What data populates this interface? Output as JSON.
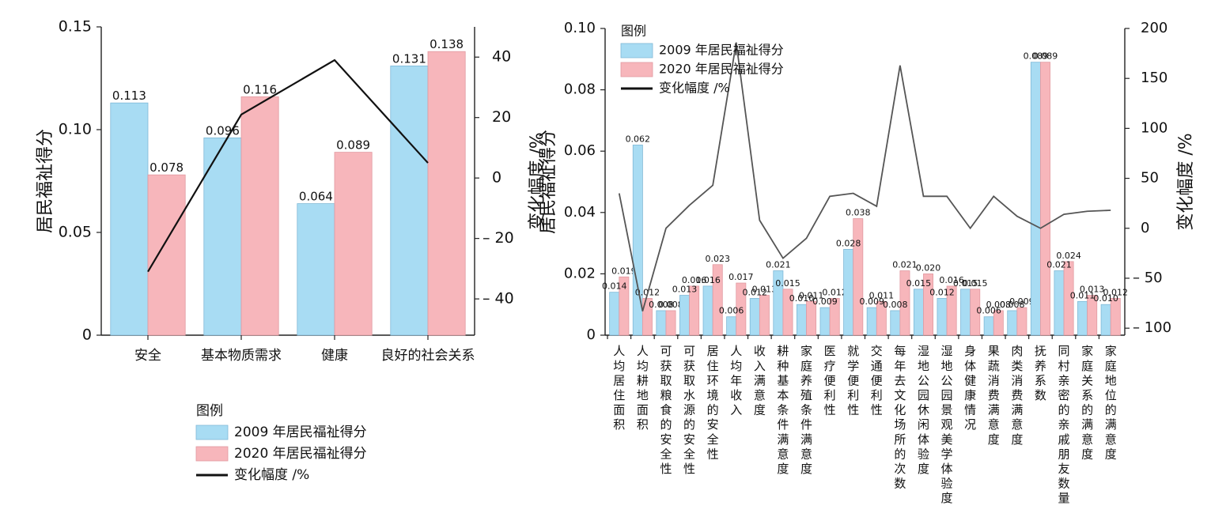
{
  "colors": {
    "s2009": "#a8dcf3",
    "s2020": "#f7b6bb",
    "s2009_edge": "#7fb8d6",
    "s2020_edge": "#e19aa1",
    "line_left": "#111111",
    "line_right": "#555555"
  },
  "chart_data": [
    {
      "type": "bar",
      "categories": [
        "安全",
        "基本物质需求",
        "健康",
        "良好的社会关系"
      ],
      "series": [
        {
          "name": "2009 年居民福祉得分",
          "values": [
            0.113,
            0.096,
            0.064,
            0.131
          ]
        },
        {
          "name": "2020 年居民福祉得分",
          "values": [
            0.078,
            0.116,
            0.089,
            0.138
          ]
        },
        {
          "name": "变化幅度 /%",
          "type": "line",
          "axis": "right",
          "values": [
            -31,
            21,
            39,
            5
          ]
        }
      ],
      "value_labels": [
        [
          "0.113",
          "0.096",
          "0.064",
          "0.131"
        ],
        [
          "0.078",
          "0.116",
          "0.089",
          "0.138"
        ]
      ],
      "ylabel": "居民福祉得分",
      "y2label": "变化幅度 /%",
      "ylim": [
        0,
        0.15
      ],
      "yticks": [
        "0",
        "0.05",
        "0.10",
        "0.15"
      ],
      "y2lim": [
        -52,
        50
      ],
      "y2ticks": [
        {
          "v": 40,
          "label": "40"
        },
        {
          "v": 20,
          "label": "20"
        },
        {
          "v": 0,
          "label": "0"
        },
        {
          "v": -20,
          "label": "– 20"
        },
        {
          "v": -40,
          "label": "– 40"
        }
      ],
      "legend": {
        "title": "图例",
        "items": [
          "2009 年居民福祉得分",
          "2020 年居民福祉得分",
          "变化幅度 /%"
        ],
        "placement": "bottom"
      }
    },
    {
      "type": "bar",
      "categories": [
        "人均居住面积",
        "人均耕地面积",
        "可获取粮食的安全性",
        "可获取水源的安全性",
        "居住环境的安全性",
        "人均年收入",
        "收入满意度",
        "耕种基本条件满意度",
        "家庭养殖条件满意度",
        "医疗便利性",
        "就学便利性",
        "交通便利性",
        "每年去文化场所的次数",
        "湿地公园休闲体验度",
        "湿地公园景观美学体验度",
        "身体健康情况",
        "果蔬消费满意度",
        "肉类消费满意度",
        "抚养系数",
        "同村亲密的亲戚朋友数量",
        "家庭关系的满意度",
        "家庭地位的满意度"
      ],
      "series": [
        {
          "name": "2009 年居民福祉得分",
          "values": [
            0.014,
            0.062,
            0.008,
            0.013,
            0.016,
            0.006,
            0.012,
            0.021,
            0.01,
            0.009,
            0.028,
            0.009,
            0.008,
            0.015,
            0.012,
            0.015,
            0.006,
            0.008,
            0.089,
            0.021,
            0.011,
            0.01
          ]
        },
        {
          "name": "2020 年居民福祉得分",
          "values": [
            0.019,
            0.012,
            0.008,
            0.016,
            0.023,
            0.017,
            0.013,
            0.015,
            0.011,
            0.012,
            0.038,
            0.011,
            0.021,
            0.02,
            0.016,
            0.015,
            0.008,
            0.009,
            0.089,
            0.024,
            0.013,
            0.012
          ]
        },
        {
          "name": "变化幅度 /%",
          "type": "line",
          "axis": "right",
          "values": [
            35,
            -83,
            0,
            23,
            43,
            186,
            8,
            -30,
            -10,
            32,
            35,
            22,
            163,
            32,
            32,
            0,
            32,
            12,
            0,
            14,
            17,
            18
          ]
        }
      ],
      "value_labels": [
        [
          "0.014",
          "0.062",
          "0.008",
          "0.013",
          "0.016",
          "0.006",
          "0.012",
          "0.021",
          "0.010",
          "0.009",
          "0.028",
          "0.009",
          "0.008",
          "0.015",
          "0.012",
          "0.015",
          "0.006",
          "0.008",
          "0.089",
          "0.021",
          "0.011",
          "0.010"
        ],
        [
          "0.019",
          "0.012",
          "0.008",
          "0.016",
          "0.023",
          "0.017",
          "0.013",
          "0.015",
          "0.011",
          "0.012",
          "0.038",
          "0.011",
          "0.021",
          "0.020",
          "0.016",
          "0.015",
          "0.008",
          "0.009",
          "0.089",
          "0.024",
          "0.013",
          "0.012"
        ]
      ],
      "ylabel": "居民福祉得分",
      "y2label": "变化幅度 /%",
      "ylim": [
        0,
        0.1
      ],
      "yticks": [
        "0",
        "0.02",
        "0.04",
        "0.06",
        "0.08",
        "0.10"
      ],
      "y2lim": [
        -107,
        200
      ],
      "y2ticks": [
        {
          "v": 200,
          "label": "200"
        },
        {
          "v": 150,
          "label": "150"
        },
        {
          "v": 100,
          "label": "100"
        },
        {
          "v": 50,
          "label": "50"
        },
        {
          "v": 0,
          "label": "0"
        },
        {
          "v": -50,
          "label": "– 50"
        },
        {
          "v": -100,
          "label": "– 100"
        }
      ],
      "legend": {
        "title": "图例",
        "items": [
          "2009 年居民福祉得分",
          "2020 年居民福祉得分",
          "变化幅度 /%"
        ],
        "placement": "top-left"
      }
    }
  ]
}
